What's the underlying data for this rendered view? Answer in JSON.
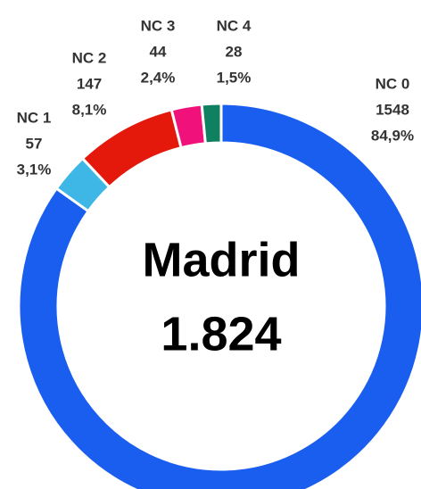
{
  "chart_data": {
    "type": "donut",
    "center_title": "Madrid",
    "center_value": "1.824",
    "categories": [
      "NC 0",
      "NC 1",
      "NC 2",
      "NC 3",
      "NC 4"
    ],
    "values": [
      1548,
      57,
      147,
      44,
      28
    ],
    "percentages": [
      84.9,
      3.1,
      8.1,
      2.4,
      1.5
    ],
    "percentage_labels": [
      "84,9%",
      "3,1%",
      "8,1%",
      "2,4%",
      "1,5%"
    ],
    "colors": [
      "#1a5ef0",
      "#3fb7e6",
      "#e5180c",
      "#f0127a",
      "#0f8060"
    ]
  }
}
